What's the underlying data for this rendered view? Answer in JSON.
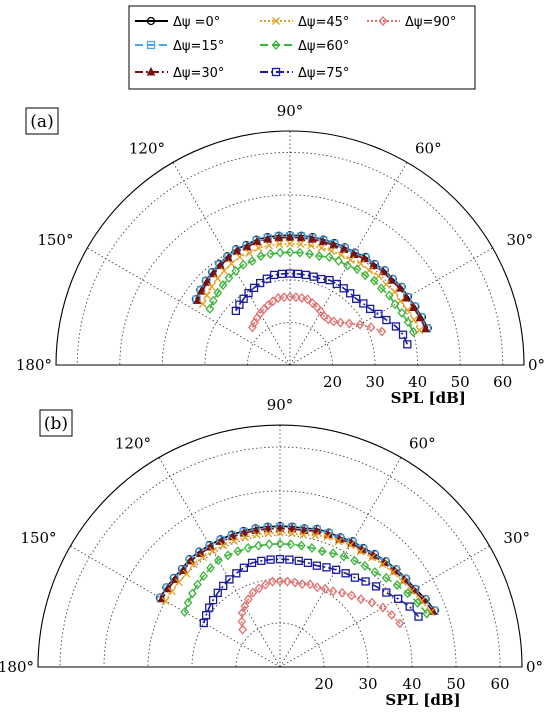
{
  "legend": {
    "entries": [
      {
        "label": "Δψ =0°",
        "color": "#000000",
        "dash": "",
        "marker": "circle"
      },
      {
        "label": "Δψ=15°",
        "color": "#4da6e8",
        "dash": "8,4",
        "marker": "square"
      },
      {
        "label": "Δψ=30°",
        "color": "#7b1010",
        "dash": "8,3,2,3",
        "marker": "triangle"
      },
      {
        "label": "Δψ=45°",
        "color": "#e6a020",
        "dash": "2,2",
        "marker": "x"
      },
      {
        "label": "Δψ=60°",
        "color": "#3cb43c",
        "dash": "8,4",
        "marker": "diamond"
      },
      {
        "label": "Δψ=75°",
        "color": "#1a1a9e",
        "dash": "8,3,2,3",
        "marker": "square"
      },
      {
        "label": "Δψ=90°",
        "color": "#e07070",
        "dash": "2,2",
        "marker": "diamond"
      }
    ]
  },
  "chart_data": [
    {
      "type": "polar-line",
      "panel_label": "(a)",
      "xlabel": "SPL [dB]",
      "angle_unit": "deg",
      "theta_range": [
        0,
        180
      ],
      "theta_labels": [
        "0°",
        "30°",
        "60°",
        "90°",
        "120°",
        "150°",
        "180°"
      ],
      "r_range": [
        10,
        65
      ],
      "r_tick_labels": [
        "20",
        "30",
        "40",
        "50",
        "60"
      ],
      "r_tick_values": [
        20,
        30,
        40,
        50,
        60
      ],
      "grid": true,
      "series": [
        {
          "name": "Δψ =0°",
          "color": "#000000",
          "dash": "",
          "marker": "circle",
          "theta": [
            15,
            20,
            25,
            30,
            35,
            40,
            45,
            50,
            55,
            60,
            65,
            70,
            75,
            80,
            85,
            90,
            95,
            100,
            105,
            110,
            115,
            120,
            125,
            130,
            135,
            140,
            145
          ],
          "r": [
            43.5,
            43,
            42.5,
            42,
            42,
            41.5,
            41.5,
            41,
            41,
            40.5,
            40.5,
            40.5,
            40.5,
            40.5,
            40.5,
            40.5,
            40.5,
            40.5,
            40.5,
            40,
            40,
            39.5,
            39,
            38.5,
            38,
            37.5,
            37
          ]
        },
        {
          "name": "Δψ=15°",
          "color": "#4da6e8",
          "dash": "8,4",
          "marker": "square",
          "theta": [
            15,
            20,
            25,
            30,
            35,
            40,
            45,
            50,
            55,
            60,
            65,
            70,
            75,
            80,
            85,
            90,
            95,
            100,
            105,
            110,
            115,
            120,
            125,
            130,
            135,
            140,
            145
          ],
          "r": [
            43.3,
            42.8,
            42.3,
            41.8,
            41.8,
            41.3,
            41.3,
            40.8,
            40.8,
            40.3,
            40.3,
            40.3,
            40.3,
            40.3,
            40.3,
            40.3,
            40.3,
            40.3,
            40.3,
            39.8,
            39.8,
            39.3,
            38.8,
            38.3,
            37.8,
            37.3,
            36.8
          ]
        },
        {
          "name": "Δψ=30°",
          "color": "#7b1010",
          "dash": "8,3,2,3",
          "marker": "triangle",
          "theta": [
            15,
            20,
            25,
            30,
            35,
            40,
            45,
            50,
            55,
            60,
            65,
            70,
            75,
            80,
            85,
            90,
            95,
            100,
            105,
            110,
            115,
            120,
            125,
            130,
            135,
            140,
            145
          ],
          "r": [
            43,
            42.5,
            42,
            41.5,
            41.5,
            41,
            41,
            40.5,
            40.5,
            40,
            40,
            40,
            40,
            40,
            40,
            40,
            40,
            40,
            40,
            39.5,
            39.5,
            39,
            38.5,
            38,
            37.5,
            37,
            36.5
          ]
        },
        {
          "name": "Δψ=45°",
          "color": "#e6a020",
          "dash": "2,2",
          "marker": "x",
          "theta": [
            15,
            20,
            25,
            30,
            35,
            40,
            45,
            50,
            55,
            60,
            65,
            70,
            75,
            80,
            85,
            90,
            95,
            100,
            105,
            110,
            115,
            120,
            125,
            130,
            135,
            140,
            145
          ],
          "r": [
            41.5,
            41,
            40.5,
            40,
            40,
            39.5,
            39.5,
            39,
            39,
            38.5,
            38.5,
            38.5,
            38.5,
            38.5,
            38.5,
            38.5,
            38.5,
            38.5,
            38.5,
            38,
            38,
            37.5,
            37,
            36.5,
            36,
            35.5,
            35
          ]
        },
        {
          "name": "Δψ=60°",
          "color": "#3cb43c",
          "dash": "8,4",
          "marker": "diamond",
          "theta": [
            15,
            20,
            25,
            30,
            35,
            40,
            45,
            50,
            55,
            60,
            65,
            70,
            75,
            80,
            85,
            90,
            95,
            100,
            105,
            110,
            115,
            120,
            125,
            130,
            135,
            140,
            145
          ],
          "r": [
            40,
            39.5,
            39,
            38.5,
            38.5,
            38,
            38,
            37.5,
            37.5,
            37,
            37,
            37,
            36.5,
            36.5,
            36.5,
            36.5,
            36.5,
            36.5,
            36.5,
            36,
            36,
            35.5,
            35,
            34.5,
            34,
            33.5,
            33
          ]
        },
        {
          "name": "Δψ=75°",
          "color": "#1a1a9e",
          "dash": "8,3,2,3",
          "marker": "square",
          "theta": [
            10,
            15,
            20,
            25,
            30,
            35,
            40,
            45,
            50,
            55,
            60,
            65,
            70,
            75,
            80,
            85,
            90,
            95,
            100,
            105,
            110,
            115,
            120,
            125,
            130,
            135
          ],
          "r": [
            38,
            37.5,
            36.5,
            35,
            34,
            33,
            32.5,
            32,
            32,
            32,
            32,
            32,
            31.5,
            31.5,
            31.5,
            31.5,
            31.5,
            31.5,
            31.5,
            31,
            30.5,
            30,
            29.5,
            29,
            28.5,
            28
          ]
        },
        {
          "name": "Δψ=90°",
          "color": "#e07070",
          "dash": "2,2",
          "marker": "diamond",
          "theta": [
            20,
            25,
            30,
            35,
            40,
            45,
            50,
            55,
            60,
            65,
            70,
            75,
            80,
            85,
            90,
            95,
            100,
            105,
            110,
            115,
            120,
            125,
            130,
            135
          ],
          "r": [
            33,
            31,
            29,
            27,
            25.5,
            24.5,
            24,
            24,
            24.5,
            25,
            25.5,
            26,
            26,
            26,
            26,
            26,
            26,
            25.5,
            25,
            24.5,
            24,
            23.5,
            23,
            22.5
          ]
        }
      ]
    },
    {
      "type": "polar-line",
      "panel_label": "(b)",
      "xlabel": "SPL [dB]",
      "angle_unit": "deg",
      "theta_range": [
        0,
        180
      ],
      "theta_labels": [
        "0°",
        "30°",
        "60°",
        "90°",
        "120°",
        "150°",
        "180°"
      ],
      "r_range": [
        10,
        65
      ],
      "r_tick_labels": [
        "20",
        "30",
        "40",
        "50",
        "60"
      ],
      "r_tick_values": [
        20,
        30,
        40,
        50,
        60
      ],
      "grid": true,
      "series": [
        {
          "name": "Δψ =0°",
          "color": "#000000",
          "dash": "",
          "marker": "circle",
          "theta": [
            20,
            25,
            30,
            35,
            40,
            45,
            50,
            55,
            60,
            65,
            70,
            75,
            80,
            85,
            90,
            95,
            100,
            105,
            110,
            115,
            120,
            125,
            130,
            135,
            140,
            145,
            150
          ],
          "r": [
            47.5,
            46.5,
            45.5,
            45,
            44.5,
            44,
            43.5,
            43,
            43,
            42.5,
            42.5,
            42.5,
            42,
            42,
            42,
            42,
            42,
            42,
            42,
            42,
            42,
            42,
            42,
            41.5,
            41.5,
            41.5,
            41.5
          ]
        },
        {
          "name": "Δψ=15°",
          "color": "#4da6e8",
          "dash": "8,4",
          "marker": "square",
          "theta": [
            20,
            25,
            30,
            35,
            40,
            45,
            50,
            55,
            60,
            65,
            70,
            75,
            80,
            85,
            90,
            95,
            100,
            105,
            110,
            115,
            120,
            125,
            130,
            135,
            140,
            145,
            150
          ],
          "r": [
            47.3,
            46.3,
            45.3,
            44.8,
            44.3,
            43.8,
            43.3,
            42.8,
            42.8,
            42.3,
            42.3,
            42.3,
            41.8,
            41.8,
            41.8,
            41.8,
            41.8,
            41.8,
            41.8,
            41.8,
            41.8,
            41.8,
            41.8,
            41.3,
            41.3,
            41.3,
            41.3
          ]
        },
        {
          "name": "Δψ=30°",
          "color": "#7b1010",
          "dash": "8,3,2,3",
          "marker": "triangle",
          "theta": [
            20,
            25,
            30,
            35,
            40,
            45,
            50,
            55,
            60,
            65,
            70,
            75,
            80,
            85,
            90,
            95,
            100,
            105,
            110,
            115,
            120,
            125,
            130,
            135,
            140,
            145,
            150
          ],
          "r": [
            47,
            46,
            45,
            44.5,
            44,
            43.5,
            43,
            42.5,
            42.5,
            42,
            42,
            42,
            41.5,
            41.5,
            41.5,
            41.5,
            41.5,
            41.5,
            41.5,
            41.5,
            41.5,
            41.5,
            41.5,
            41,
            41,
            41,
            41
          ]
        },
        {
          "name": "Δψ=45°",
          "color": "#e6a020",
          "dash": "2,2",
          "marker": "x",
          "theta": [
            20,
            25,
            30,
            35,
            40,
            45,
            50,
            55,
            60,
            65,
            70,
            75,
            80,
            85,
            90,
            95,
            100,
            105,
            110,
            115,
            120,
            125,
            130,
            135,
            140,
            145,
            150
          ],
          "r": [
            46.5,
            45.5,
            44.5,
            44,
            43.5,
            43,
            42.5,
            42,
            42,
            41.5,
            41.5,
            41,
            40.5,
            40.5,
            40.5,
            40.5,
            40.5,
            40.5,
            40.5,
            40.5,
            40.5,
            40.5,
            40.5,
            40,
            40,
            40,
            40
          ]
        },
        {
          "name": "Δψ=60°",
          "color": "#3cb43c",
          "dash": "8,4",
          "marker": "diamond",
          "theta": [
            20,
            25,
            30,
            35,
            40,
            45,
            50,
            55,
            60,
            65,
            70,
            75,
            80,
            85,
            90,
            95,
            100,
            105,
            110,
            115,
            120,
            125,
            130,
            135,
            140,
            145,
            150
          ],
          "r": [
            45.5,
            44.5,
            43.5,
            42.5,
            41.5,
            40.5,
            40,
            39.5,
            39,
            38.5,
            38,
            38,
            38,
            38,
            38,
            38,
            38,
            38,
            38,
            38,
            38,
            37.5,
            37,
            36.5,
            36,
            35.5,
            35
          ]
        },
        {
          "name": "Δψ=75°",
          "color": "#1a1a9e",
          "dash": "8,3,2,3",
          "marker": "square",
          "theta": [
            20,
            25,
            30,
            35,
            40,
            45,
            50,
            55,
            60,
            65,
            70,
            75,
            80,
            85,
            90,
            95,
            100,
            105,
            110,
            115,
            120,
            125,
            130,
            135,
            140,
            145,
            150
          ],
          "r": [
            43.5,
            42.5,
            41,
            39.5,
            38.5,
            37.5,
            36.5,
            36,
            35.5,
            35,
            34.5,
            34.5,
            34.5,
            34.5,
            34.5,
            34.5,
            34.5,
            34.5,
            34,
            33.5,
            33,
            32.5,
            32,
            31.5,
            31,
            30.5,
            30
          ]
        },
        {
          "name": "Δψ=90°",
          "color": "#e07070",
          "dash": "2,2",
          "marker": "diamond",
          "theta": [
            20,
            25,
            30,
            35,
            40,
            45,
            50,
            55,
            60,
            65,
            70,
            75,
            80,
            85,
            90,
            95,
            100,
            105,
            110,
            115,
            120,
            125,
            130,
            135
          ],
          "r": [
            39,
            38,
            37,
            35.5,
            34,
            33,
            32,
            31,
            30.5,
            30,
            30,
            29.5,
            29.5,
            29.5,
            29.5,
            29.5,
            29,
            28.5,
            28,
            27,
            26,
            25,
            23.5,
            22
          ]
        }
      ]
    }
  ]
}
